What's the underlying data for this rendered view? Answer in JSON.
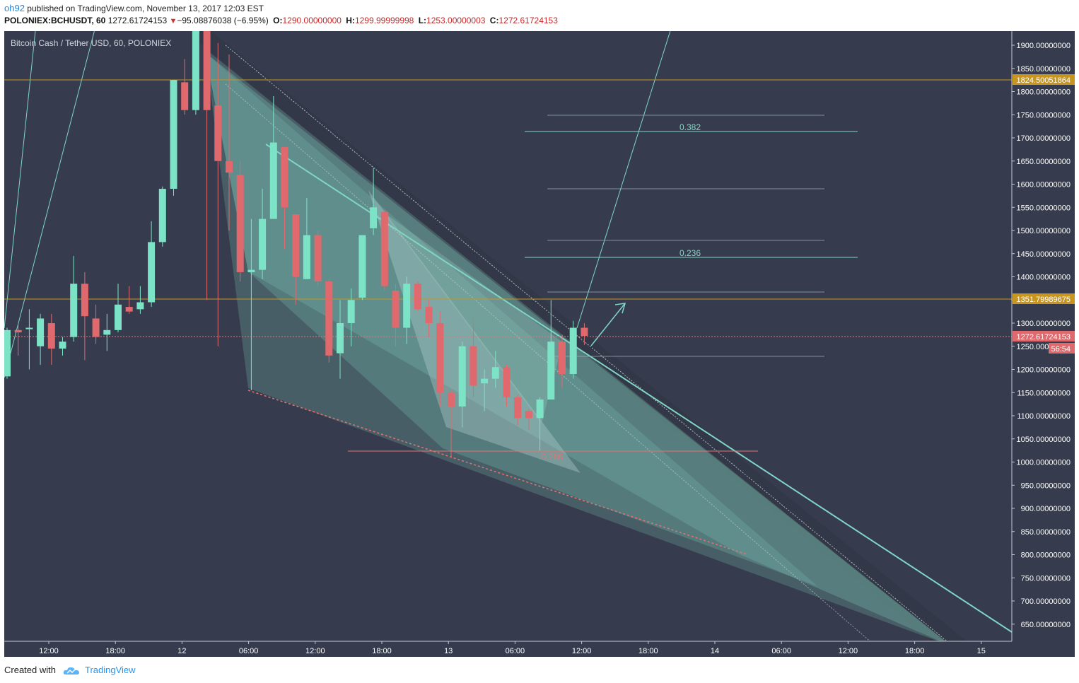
{
  "header": {
    "user": "oh92",
    "published_text": "published on TradingView.com, November 13, 2017 12:03 EST",
    "symbol": "POLONIEX:BCHUSDT, 60",
    "last_price": "1272.61724153",
    "change": "−95.08876038 (−6.95%)",
    "o_label": "O:",
    "o_value": "1290.00000000",
    "h_label": "H:",
    "h_value": "1299.99999998",
    "l_label": "L:",
    "l_value": "1253.00000003",
    "c_label": "C:",
    "c_value": "1272.61724153"
  },
  "footer": {
    "created_label": "Created with",
    "brand": "TradingView",
    "logo_icon": "tradingview-cloud-icon"
  },
  "colors": {
    "background": "#363c4e",
    "up": "#7de3c7",
    "down": "#e0696e",
    "axis_text": "#ffffff",
    "level_line": "#c8961e",
    "pattern_fill": "#6fb3a8",
    "trendline": "#7fd6c6"
  },
  "chart_data": {
    "type": "candlestick",
    "title": "Bitcoin Cash / Tether USD, 60, POLONIEX",
    "ylim": [
      600,
      1920
    ],
    "x_ticks": [
      "12:00",
      "18:00",
      "12",
      "06:00",
      "12:00",
      "18:00",
      "13",
      "06:00",
      "12:00",
      "18:00",
      "14",
      "06:00",
      "12:00",
      "18:00",
      "15"
    ],
    "y_ticks": [
      "650.00000000",
      "700.00000000",
      "750.00000000",
      "800.00000000",
      "850.00000000",
      "900.00000000",
      "950.00000000",
      "1000.00000000",
      "1050.00000000",
      "1100.00000000",
      "1150.00000000",
      "1200.00000000",
      "1250.00000000",
      "1300.00000000",
      "1350.00000000",
      "1400.00000000",
      "1450.00000000",
      "1500.00000000",
      "1550.00000000",
      "1600.00000000",
      "1650.00000000",
      "1700.00000000",
      "1750.00000000",
      "1800.00000000",
      "1850.00000000",
      "1900.00000000"
    ],
    "candles": [
      {
        "o": 1185,
        "h": 1290,
        "l": 1180,
        "c": 1285
      },
      {
        "o": 1285,
        "h": 1300,
        "l": 1230,
        "c": 1280
      },
      {
        "o": 1290,
        "h": 1330,
        "l": 1200,
        "c": 1290
      },
      {
        "o": 1250,
        "h": 1320,
        "l": 1210,
        "c": 1310
      },
      {
        "o": 1300,
        "h": 1320,
        "l": 1210,
        "c": 1245
      },
      {
        "o": 1245,
        "h": 1270,
        "l": 1230,
        "c": 1260
      },
      {
        "o": 1270,
        "h": 1445,
        "l": 1260,
        "c": 1385
      },
      {
        "o": 1385,
        "h": 1410,
        "l": 1220,
        "c": 1315
      },
      {
        "o": 1310,
        "h": 1340,
        "l": 1255,
        "c": 1270
      },
      {
        "o": 1275,
        "h": 1320,
        "l": 1240,
        "c": 1285
      },
      {
        "o": 1285,
        "h": 1385,
        "l": 1280,
        "c": 1340
      },
      {
        "o": 1335,
        "h": 1380,
        "l": 1320,
        "c": 1325
      },
      {
        "o": 1330,
        "h": 1380,
        "l": 1320,
        "c": 1345
      },
      {
        "o": 1345,
        "h": 1520,
        "l": 1335,
        "c": 1475
      },
      {
        "o": 1475,
        "h": 1595,
        "l": 1465,
        "c": 1590
      },
      {
        "o": 1590,
        "h": 1825,
        "l": 1575,
        "c": 1825
      },
      {
        "o": 1820,
        "h": 1870,
        "l": 1750,
        "c": 1760
      },
      {
        "o": 1760,
        "h": 1960,
        "l": 1750,
        "c": 1960
      },
      {
        "o": 1960,
        "h": 1960,
        "l": 1350,
        "c": 1760
      },
      {
        "o": 1770,
        "h": 1905,
        "l": 1250,
        "c": 1650
      },
      {
        "o": 1650,
        "h": 1880,
        "l": 1500,
        "c": 1625
      },
      {
        "o": 1620,
        "h": 1650,
        "l": 1390,
        "c": 1410
      },
      {
        "o": 1410,
        "h": 1525,
        "l": 1155,
        "c": 1415
      },
      {
        "o": 1415,
        "h": 1590,
        "l": 1395,
        "c": 1525
      },
      {
        "o": 1525,
        "h": 1790,
        "l": 1525,
        "c": 1690
      },
      {
        "o": 1680,
        "h": 1680,
        "l": 1460,
        "c": 1550
      },
      {
        "o": 1535,
        "h": 1535,
        "l": 1340,
        "c": 1400
      },
      {
        "o": 1395,
        "h": 1570,
        "l": 1395,
        "c": 1490
      },
      {
        "o": 1490,
        "h": 1500,
        "l": 1380,
        "c": 1390
      },
      {
        "o": 1390,
        "h": 1395,
        "l": 1215,
        "c": 1230
      },
      {
        "o": 1235,
        "h": 1350,
        "l": 1180,
        "c": 1300
      },
      {
        "o": 1300,
        "h": 1375,
        "l": 1250,
        "c": 1350
      },
      {
        "o": 1355,
        "h": 1490,
        "l": 1350,
        "c": 1490
      },
      {
        "o": 1505,
        "h": 1635,
        "l": 1490,
        "c": 1550
      },
      {
        "o": 1540,
        "h": 1545,
        "l": 1370,
        "c": 1380
      },
      {
        "o": 1370,
        "h": 1385,
        "l": 1250,
        "c": 1290
      },
      {
        "o": 1290,
        "h": 1400,
        "l": 1255,
        "c": 1385
      },
      {
        "o": 1385,
        "h": 1390,
        "l": 1325,
        "c": 1330
      },
      {
        "o": 1335,
        "h": 1350,
        "l": 1270,
        "c": 1300
      },
      {
        "o": 1300,
        "h": 1325,
        "l": 1120,
        "c": 1150
      },
      {
        "o": 1150,
        "h": 1155,
        "l": 1010,
        "c": 1120
      },
      {
        "o": 1120,
        "h": 1260,
        "l": 1075,
        "c": 1250
      },
      {
        "o": 1250,
        "h": 1310,
        "l": 1140,
        "c": 1165
      },
      {
        "o": 1170,
        "h": 1200,
        "l": 1110,
        "c": 1180
      },
      {
        "o": 1180,
        "h": 1240,
        "l": 1160,
        "c": 1205
      },
      {
        "o": 1205,
        "h": 1210,
        "l": 1120,
        "c": 1140
      },
      {
        "o": 1140,
        "h": 1145,
        "l": 1080,
        "c": 1095
      },
      {
        "o": 1110,
        "h": 1115,
        "l": 1070,
        "c": 1095
      },
      {
        "o": 1095,
        "h": 1140,
        "l": 1025,
        "c": 1135
      },
      {
        "o": 1135,
        "h": 1350,
        "l": 1135,
        "c": 1260
      },
      {
        "o": 1260,
        "h": 1275,
        "l": 1160,
        "c": 1190
      },
      {
        "o": 1190,
        "h": 1305,
        "l": 1180,
        "c": 1290
      },
      {
        "o": 1290,
        "h": 1300,
        "l": 1253,
        "c": 1272.6
      }
    ],
    "horizontal_levels": [
      {
        "value": "1824.50051864"
      },
      {
        "value": "1351.79989675"
      }
    ],
    "current_price": {
      "value": "1272.61724153",
      "countdown": "56:54"
    },
    "fib_levels": [
      {
        "label": "0.382"
      },
      {
        "label": "0.236"
      },
      {
        "label": "0.786"
      }
    ]
  }
}
